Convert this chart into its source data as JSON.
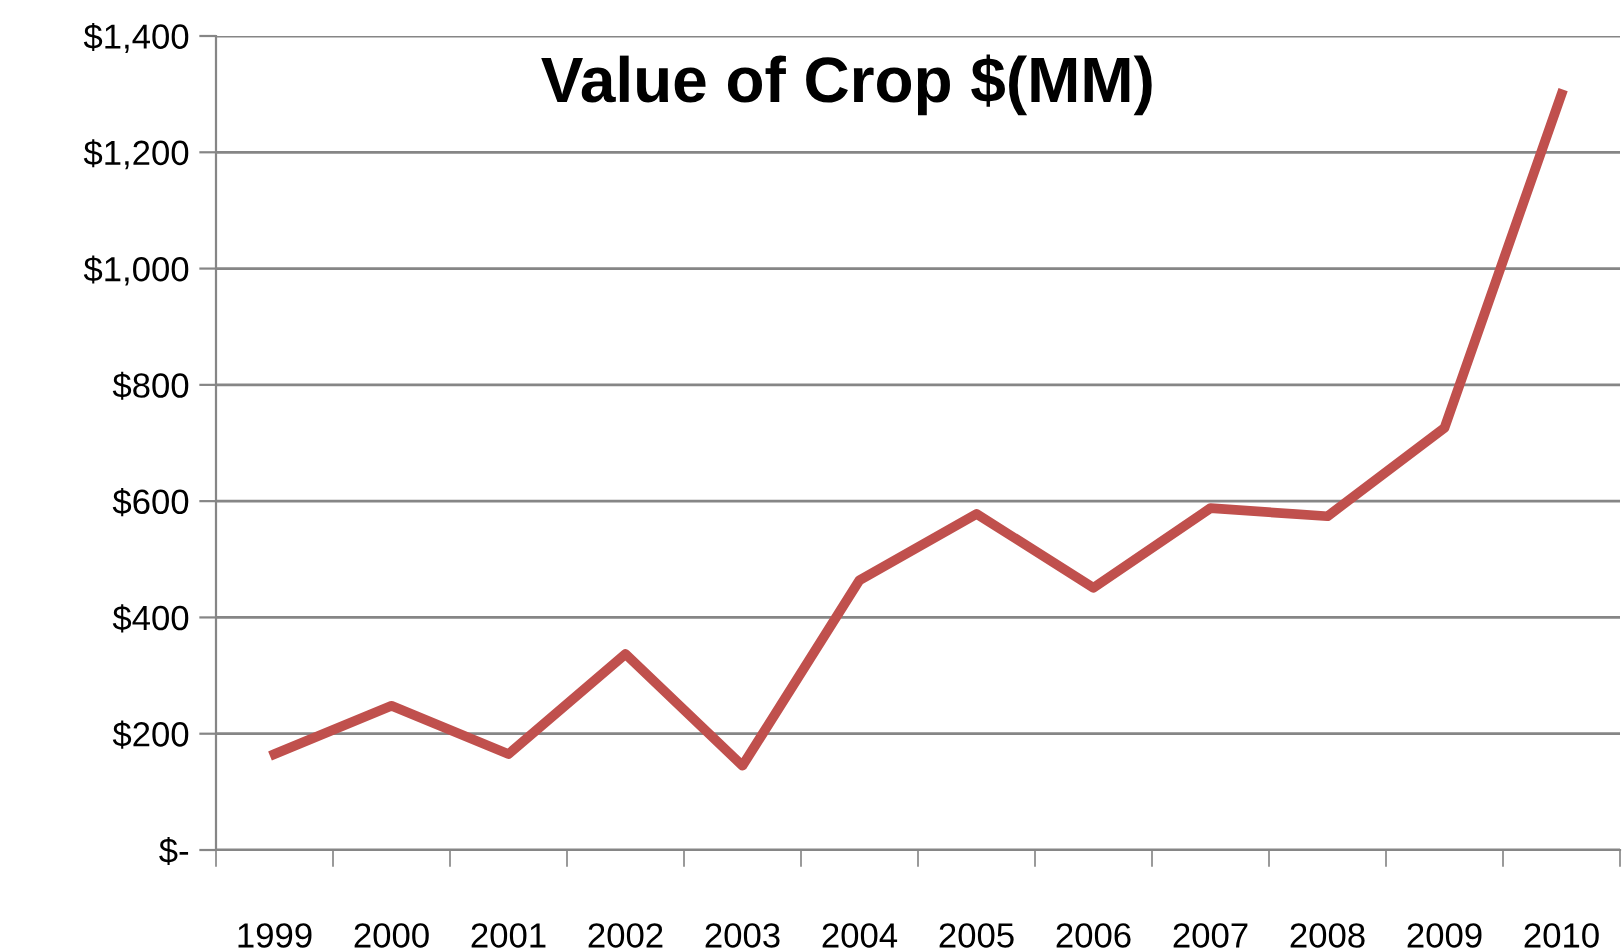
{
  "chart_data": {
    "type": "line",
    "title": "Value of Crop $(MM)",
    "categories": [
      "1999",
      "2000",
      "2001",
      "2002",
      "2003",
      "2004",
      "2005",
      "2006",
      "2007",
      "2008",
      "2009",
      "2010"
    ],
    "series": [
      {
        "color": "#c0504d",
        "values": [
          165,
          248,
          165,
          337,
          145,
          464,
          578,
          451,
          588,
          574,
          726,
          1300
        ]
      }
    ],
    "ylim": [
      0,
      1400
    ],
    "yticks": [
      {
        "value": 0,
        "label": "$-"
      },
      {
        "value": 200,
        "label": "$200"
      },
      {
        "value": 400,
        "label": "$400"
      },
      {
        "value": 600,
        "label": "$600"
      },
      {
        "value": 800,
        "label": "$800"
      },
      {
        "value": 1000,
        "label": "$1,000"
      },
      {
        "value": 1200,
        "label": "$1,200"
      },
      {
        "value": 1400,
        "label": "$1,400"
      }
    ],
    "grid": "y",
    "marker": "none",
    "line_style": "solid"
  }
}
